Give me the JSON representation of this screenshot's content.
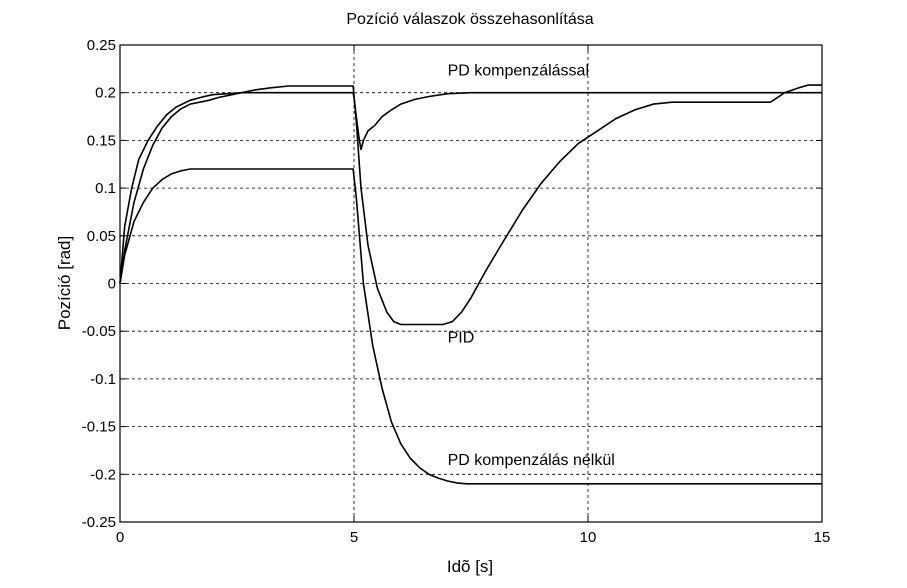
{
  "chart_data": {
    "type": "line",
    "title": "Pozíció válaszok összehasonlítása",
    "xlabel": "Idõ [s]",
    "ylabel": "Pozíció [rad]",
    "xlim": [
      0,
      15
    ],
    "ylim": [
      -0.25,
      0.25
    ],
    "grid": true,
    "x_ticks": [
      0,
      5,
      10,
      15
    ],
    "x_tick_labels": [
      "0",
      "5",
      "10",
      "15"
    ],
    "y_ticks": [
      -0.25,
      -0.2,
      -0.15,
      -0.1,
      -0.05,
      0,
      0.05,
      0.1,
      0.15,
      0.2,
      0.25
    ],
    "y_tick_labels": [
      "-0.25",
      "-0.2",
      "-0.15",
      "-0.1",
      "-0.05",
      "0",
      "0.05",
      "0.1",
      "0.15",
      "0.2",
      "0.25"
    ],
    "line_color": "#000000",
    "series": [
      {
        "name": "PD kompenzálással",
        "x": [
          0,
          0.1,
          0.25,
          0.4,
          0.6,
          0.8,
          1.0,
          1.2,
          1.5,
          1.8,
          2.0,
          2.3,
          2.6,
          3.0,
          3.5,
          4.0,
          4.5,
          4.98,
          5.0,
          5.05,
          5.1,
          5.15,
          5.2,
          5.3,
          5.45,
          5.6,
          5.8,
          6.0,
          6.3,
          6.6,
          7.0,
          7.5,
          8.0,
          10.0,
          12.0,
          15.0
        ],
        "y": [
          0,
          0.06,
          0.1,
          0.13,
          0.15,
          0.165,
          0.177,
          0.185,
          0.192,
          0.196,
          0.198,
          0.199,
          0.2,
          0.2,
          0.2,
          0.2,
          0.2,
          0.2,
          0.195,
          0.175,
          0.155,
          0.14,
          0.15,
          0.16,
          0.166,
          0.175,
          0.182,
          0.188,
          0.193,
          0.196,
          0.199,
          0.2,
          0.2,
          0.2,
          0.2,
          0.2
        ]
      },
      {
        "name": "PID",
        "x": [
          0,
          0.1,
          0.3,
          0.5,
          0.7,
          0.9,
          1.1,
          1.3,
          1.5,
          1.7,
          1.9,
          2.1,
          2.3,
          2.6,
          2.9,
          3.2,
          3.6,
          4.0,
          4.5,
          4.98,
          5.05,
          5.15,
          5.3,
          5.5,
          5.7,
          5.85,
          6.0,
          6.2,
          6.5,
          6.9,
          7.1,
          7.3,
          7.5,
          7.8,
          8.2,
          8.6,
          9.0,
          9.4,
          9.8,
          10.2,
          10.6,
          11.0,
          11.4,
          11.8,
          12.2,
          12.6,
          13.0,
          13.5,
          13.9,
          14.2,
          14.5,
          14.7,
          15.0
        ],
        "y": [
          0,
          0.035,
          0.085,
          0.12,
          0.145,
          0.163,
          0.175,
          0.183,
          0.188,
          0.19,
          0.192,
          0.195,
          0.197,
          0.2,
          0.203,
          0.205,
          0.207,
          0.207,
          0.207,
          0.207,
          0.17,
          0.1,
          0.04,
          -0.005,
          -0.03,
          -0.04,
          -0.043,
          -0.043,
          -0.043,
          -0.043,
          -0.04,
          -0.03,
          -0.015,
          0.012,
          0.045,
          0.077,
          0.105,
          0.128,
          0.147,
          0.16,
          0.173,
          0.182,
          0.188,
          0.19,
          0.19,
          0.19,
          0.19,
          0.19,
          0.19,
          0.2,
          0.205,
          0.208,
          0.208
        ]
      },
      {
        "name": "PD kompenzálás nélkül",
        "x": [
          0,
          0.1,
          0.3,
          0.5,
          0.7,
          0.9,
          1.1,
          1.3,
          1.5,
          1.8,
          2.2,
          3.0,
          4.0,
          4.98,
          5.05,
          5.2,
          5.4,
          5.6,
          5.8,
          6.0,
          6.2,
          6.4,
          6.6,
          6.8,
          7.0,
          7.2,
          7.4,
          7.6,
          8.0,
          10.0,
          12.0,
          15.0
        ],
        "y": [
          0,
          0.03,
          0.065,
          0.085,
          0.1,
          0.109,
          0.115,
          0.118,
          0.12,
          0.12,
          0.12,
          0.12,
          0.12,
          0.12,
          0.09,
          0.0,
          -0.065,
          -0.11,
          -0.145,
          -0.168,
          -0.183,
          -0.193,
          -0.2,
          -0.204,
          -0.207,
          -0.209,
          -0.21,
          -0.21,
          -0.21,
          -0.21,
          -0.21,
          -0.21
        ]
      }
    ],
    "annotations": [
      {
        "text": "PD kompenzálással",
        "x": 7.0,
        "y": 0.218
      },
      {
        "text": "PID",
        "x": 7.0,
        "y": -0.062
      },
      {
        "text": "PD kompenzálás nélkül",
        "x": 7.0,
        "y": -0.19
      }
    ]
  }
}
